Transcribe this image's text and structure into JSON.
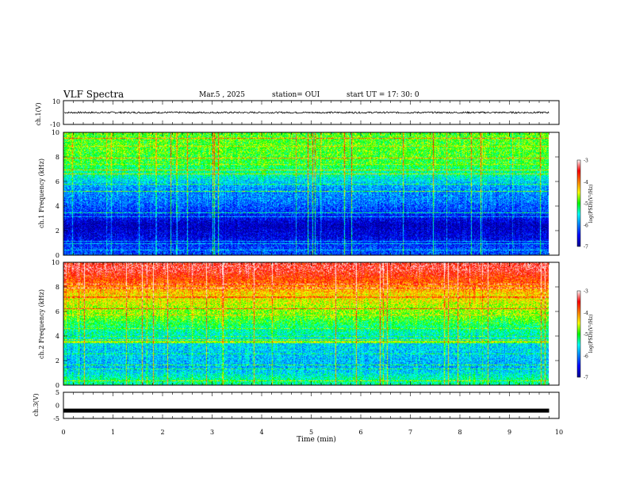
{
  "header": {
    "title": "VLF Spectra",
    "date": "Mar.5 , 2025",
    "station": "station= OUI",
    "start": "start UT = 17: 30: 0"
  },
  "colors": {
    "spectrum_low": "#00008f",
    "spectrum_mid": "#00ff00",
    "spectrum_high": "#ff0000",
    "frame": "#000000"
  },
  "chart_data": [
    {
      "type": "line",
      "panel": "ch1-waveform",
      "ylabel": "ch.1(V)",
      "ylim": [
        -10,
        10
      ],
      "yticks": [
        "10",
        "-10"
      ],
      "xlim": [
        0,
        9.8
      ],
      "series": [
        {
          "x": [
            0,
            9.8
          ],
          "values": [
            0,
            0
          ]
        }
      ]
    },
    {
      "type": "heatmap",
      "panel": "ch1-spectrogram",
      "ylabel": "ch.1 Frequency (kHz)",
      "ylim": [
        0,
        10
      ],
      "yticks": [
        "0",
        "2",
        "4",
        "6",
        "8",
        "10"
      ],
      "xlim": [
        0,
        9.8
      ],
      "colorbar": {
        "label": "log(PSD)(V²/Hz)",
        "range": [
          -7,
          -3
        ],
        "ticks": [
          "-3",
          "-4",
          "-5",
          "-6",
          "-7"
        ]
      },
      "profile": [
        {
          "f": 0.5,
          "logpsd": -6.2
        },
        {
          "f": 1.5,
          "logpsd": -6.6
        },
        {
          "f": 2.5,
          "logpsd": -6.8
        },
        {
          "f": 3.5,
          "logpsd": -6.3
        },
        {
          "f": 4.5,
          "logpsd": -6.0
        },
        {
          "f": 5.5,
          "logpsd": -5.9
        },
        {
          "f": 6.5,
          "logpsd": -5.4
        },
        {
          "f": 7.5,
          "logpsd": -5.0
        },
        {
          "f": 8.5,
          "logpsd": -4.9
        },
        {
          "f": 9.5,
          "logpsd": -4.9
        }
      ]
    },
    {
      "type": "heatmap",
      "panel": "ch2-spectrogram",
      "ylabel": "ch.2 Frequency (kHz)",
      "ylim": [
        0,
        10
      ],
      "yticks": [
        "0",
        "2",
        "4",
        "6",
        "8",
        "10"
      ],
      "xlim": [
        0,
        9.8
      ],
      "colorbar": {
        "label": "log(PSD)(V²/Hz)",
        "range": [
          -7,
          -3
        ],
        "ticks": [
          "-3",
          "-4",
          "-5",
          "-6",
          "-7"
        ]
      },
      "profile": [
        {
          "f": 0.5,
          "logpsd": -5.3
        },
        {
          "f": 1.5,
          "logpsd": -5.8
        },
        {
          "f": 2.5,
          "logpsd": -5.7
        },
        {
          "f": 3.5,
          "logpsd": -5.6
        },
        {
          "f": 4.5,
          "logpsd": -5.3
        },
        {
          "f": 5.5,
          "logpsd": -4.9
        },
        {
          "f": 6.5,
          "logpsd": -4.6
        },
        {
          "f": 7.5,
          "logpsd": -4.3
        },
        {
          "f": 8.5,
          "logpsd": -3.8
        },
        {
          "f": 9.5,
          "logpsd": -3.4
        }
      ]
    },
    {
      "type": "line",
      "panel": "ch3-waveform",
      "ylabel": "ch.3(V)",
      "ylim": [
        -5,
        5
      ],
      "yticks": [
        "5",
        "0",
        "-5"
      ],
      "xlim": [
        0,
        9.8
      ],
      "series": [
        {
          "x": [
            0,
            9.8
          ],
          "values": [
            -2,
            -2
          ]
        }
      ]
    }
  ],
  "xaxis": {
    "label": "Time (min)",
    "range": [
      0,
      10
    ],
    "ticks": [
      "0",
      "1",
      "2",
      "3",
      "4",
      "5",
      "6",
      "7",
      "8",
      "9",
      "10"
    ]
  }
}
